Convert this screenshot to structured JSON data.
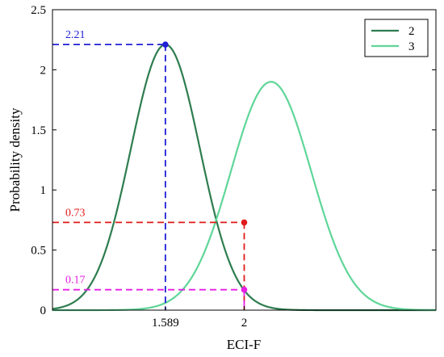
{
  "chart_data": {
    "type": "line",
    "xlabel": "ECI-F",
    "ylabel": "Probability density",
    "ylim": [
      0,
      2.5
    ],
    "xlim": [
      1.0,
      3.0
    ],
    "y_ticks": [
      "0",
      "0.5",
      "1",
      "1.5",
      "2",
      "2.5"
    ],
    "x_ticks": [
      {
        "label": "1.589",
        "value": 1.589
      },
      {
        "label": "2",
        "value": 2.0
      }
    ],
    "grid": false,
    "legend_position": "top-right",
    "series": [
      {
        "name": "2",
        "color": "#2e7d4f",
        "distribution": "normal",
        "mean": 1.589,
        "peak": 2.21
      },
      {
        "name": "3",
        "color": "#5fd698",
        "distribution": "normal",
        "mean": 2.14,
        "peak": 1.9
      }
    ],
    "annotations": [
      {
        "label": "2.21",
        "x": 1.589,
        "y": 2.21,
        "color": "#1f1fd6"
      },
      {
        "label": "0.73",
        "x": 2.0,
        "y": 0.73,
        "color": "#e01a1a"
      },
      {
        "label": "0.17",
        "x": 2.0,
        "y": 0.17,
        "color": "#e61ee6"
      }
    ]
  }
}
